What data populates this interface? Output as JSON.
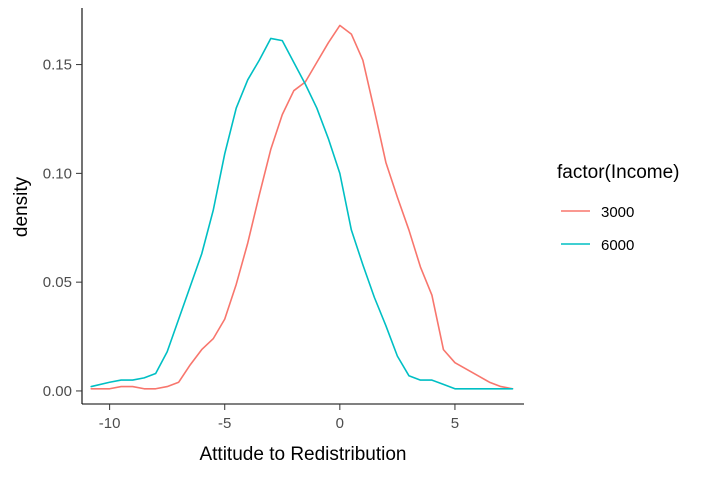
{
  "chart_data": {
    "type": "line",
    "xlabel": "Attitude to Redistribution",
    "ylabel": "density",
    "xlim": [
      -11.2,
      8.0
    ],
    "ylim": [
      -0.006,
      0.176
    ],
    "x_ticks": [
      -10,
      -5,
      0,
      5
    ],
    "y_ticks": [
      0.0,
      0.05,
      0.1,
      0.15
    ],
    "x_tick_labels": [
      "-10",
      "-5",
      "0",
      "5"
    ],
    "y_tick_labels": [
      "0.00",
      "0.05",
      "0.10",
      "0.15"
    ],
    "grid": false,
    "legend": {
      "title": "factor(Income)",
      "position": "right"
    },
    "series": [
      {
        "name": "3000",
        "color": "#F8766D",
        "points": [
          [
            -10.8,
            0.001
          ],
          [
            -10.0,
            0.001
          ],
          [
            -9.5,
            0.002
          ],
          [
            -9.0,
            0.002
          ],
          [
            -8.5,
            0.001
          ],
          [
            -8.0,
            0.001
          ],
          [
            -7.5,
            0.002
          ],
          [
            -7.0,
            0.004
          ],
          [
            -6.5,
            0.012
          ],
          [
            -6.0,
            0.019
          ],
          [
            -5.5,
            0.024
          ],
          [
            -5.0,
            0.033
          ],
          [
            -4.5,
            0.049
          ],
          [
            -4.0,
            0.068
          ],
          [
            -3.5,
            0.09
          ],
          [
            -3.0,
            0.111
          ],
          [
            -2.5,
            0.127
          ],
          [
            -2.0,
            0.138
          ],
          [
            -1.5,
            0.142
          ],
          [
            -1.0,
            0.151
          ],
          [
            -0.5,
            0.16
          ],
          [
            0.0,
            0.168
          ],
          [
            0.5,
            0.164
          ],
          [
            1.0,
            0.152
          ],
          [
            1.5,
            0.129
          ],
          [
            2.0,
            0.105
          ],
          [
            2.5,
            0.089
          ],
          [
            3.0,
            0.074
          ],
          [
            3.5,
            0.057
          ],
          [
            4.0,
            0.044
          ],
          [
            4.5,
            0.019
          ],
          [
            5.0,
            0.013
          ],
          [
            5.5,
            0.01
          ],
          [
            6.0,
            0.007
          ],
          [
            6.5,
            0.004
          ],
          [
            7.0,
            0.002
          ],
          [
            7.5,
            0.001
          ]
        ]
      },
      {
        "name": "6000",
        "color": "#00BFC4",
        "points": [
          [
            -10.8,
            0.002
          ],
          [
            -10.0,
            0.004
          ],
          [
            -9.5,
            0.005
          ],
          [
            -9.0,
            0.005
          ],
          [
            -8.5,
            0.006
          ],
          [
            -8.0,
            0.008
          ],
          [
            -7.5,
            0.018
          ],
          [
            -7.0,
            0.033
          ],
          [
            -6.5,
            0.048
          ],
          [
            -6.0,
            0.063
          ],
          [
            -5.5,
            0.083
          ],
          [
            -5.0,
            0.109
          ],
          [
            -4.5,
            0.13
          ],
          [
            -4.0,
            0.143
          ],
          [
            -3.5,
            0.152
          ],
          [
            -3.0,
            0.162
          ],
          [
            -2.5,
            0.161
          ],
          [
            -2.0,
            0.151
          ],
          [
            -1.5,
            0.141
          ],
          [
            -1.0,
            0.13
          ],
          [
            -0.5,
            0.116
          ],
          [
            0.0,
            0.1
          ],
          [
            0.5,
            0.074
          ],
          [
            1.0,
            0.058
          ],
          [
            1.5,
            0.043
          ],
          [
            2.0,
            0.03
          ],
          [
            2.5,
            0.016
          ],
          [
            3.0,
            0.007
          ],
          [
            3.5,
            0.005
          ],
          [
            4.0,
            0.005
          ],
          [
            4.5,
            0.003
          ],
          [
            5.0,
            0.001
          ],
          [
            5.5,
            0.001
          ],
          [
            6.0,
            0.001
          ],
          [
            6.5,
            0.001
          ],
          [
            7.0,
            0.001
          ],
          [
            7.5,
            0.001
          ]
        ]
      }
    ]
  }
}
